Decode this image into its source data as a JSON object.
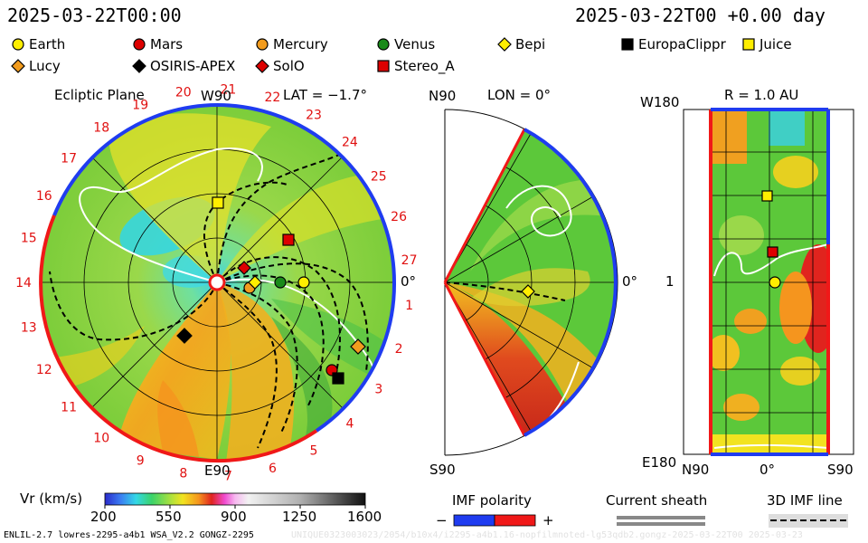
{
  "header": {
    "timestamp_left": "2025-03-22T00:00",
    "timestamp_right": "2025-03-22T00 +0.00 day"
  },
  "legend": [
    {
      "name": "Earth",
      "marker": "circle",
      "color": "#ffee00"
    },
    {
      "name": "Mars",
      "marker": "circle",
      "color": "#dd0000"
    },
    {
      "name": "Mercury",
      "marker": "circle",
      "color": "#f29c1e"
    },
    {
      "name": "Venus",
      "marker": "circle",
      "color": "#1a8a1a"
    },
    {
      "name": "Bepi",
      "marker": "diamond",
      "color": "#ffee00"
    },
    {
      "name": "EuropaClippr",
      "marker": "square",
      "color": "#000000"
    },
    {
      "name": "Juice",
      "marker": "square",
      "color": "#ffee00"
    },
    {
      "name": "Lucy",
      "marker": "diamond",
      "color": "#f29c1e"
    },
    {
      "name": "OSIRIS-APEX",
      "marker": "diamond",
      "color": "#000000"
    },
    {
      "name": "SolO",
      "marker": "diamond",
      "color": "#dd0000"
    },
    {
      "name": "Stereo_A",
      "marker": "square",
      "color": "#dd0000"
    }
  ],
  "panels": {
    "ecliptic": {
      "title": "Ecliptic Plane",
      "lat_label": "LAT = −1.7°",
      "top_label": "W90",
      "bottom_label": "E90",
      "right_label": "0°",
      "carrington_ticks": [
        "1",
        "2",
        "3",
        "4",
        "5",
        "6",
        "7",
        "8",
        "9",
        "10",
        "11",
        "12",
        "13",
        "14",
        "15",
        "16",
        "17",
        "18",
        "19",
        "20",
        "21",
        "22",
        "23",
        "24",
        "25",
        "26",
        "27"
      ]
    },
    "meridional": {
      "lon_label": "LON = 0°",
      "top_label": "N90",
      "bottom_label": "S90",
      "right_label": "0°"
    },
    "radial": {
      "title": "R = 1.0 AU",
      "top_left_label": "W180",
      "mid_left_label": "1",
      "bottom_left_label": "E180",
      "x_labels": [
        "N90",
        "0°",
        "S90"
      ]
    }
  },
  "colorbar": {
    "label": "Vr (km/s)",
    "ticks": [
      "200",
      "550",
      "900",
      "1250",
      "1600"
    ],
    "range": [
      200,
      1600
    ]
  },
  "imf": {
    "polarity_label": "IMF polarity",
    "minus": "−",
    "plus": "+",
    "current_sheath_label": "Current sheath",
    "imf_line_label": "3D IMF line"
  },
  "footer": {
    "model_info": "ENLIL-2.7 lowres-2295-a4b1 WSA_V2.2 GONGZ-2295",
    "watermark": "UNIQUE0323003023/2054/b10x4/i2295-a4b1.16-nopfilmnoted-lg53qdb2.gongz-2025-03-22T00 2025-03-23"
  },
  "chart_data": {
    "type": "heatmap",
    "quantity": "Vr (km/s)",
    "time": "2025-03-22T00:00",
    "offset_days": 0.0,
    "ecliptic_latitude_deg": -1.7,
    "meridional_longitude_deg": 0,
    "radial_surface_AU": 1.0,
    "colorbar_range": [
      200,
      1600
    ],
    "colorbar_ticks": [
      200,
      550,
      900,
      1250,
      1600
    ]
  }
}
